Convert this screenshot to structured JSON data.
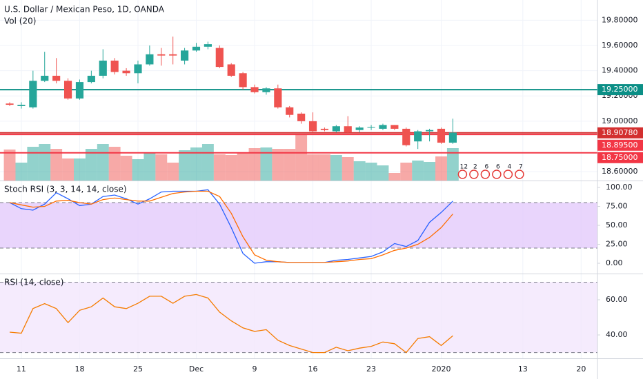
{
  "chart_data": [
    {
      "type": "candlestick",
      "title": "U.S. Dollar / Mexican Peso, 1D, OANDA",
      "subtitle": "Vol (20)",
      "x": [
        0,
        1,
        2,
        3,
        4,
        5,
        6,
        7,
        8,
        9,
        10,
        11,
        12,
        13,
        14,
        15,
        16,
        17,
        18,
        19,
        20,
        21,
        22,
        23,
        24,
        25,
        26,
        27,
        28,
        29,
        30,
        31,
        32,
        33,
        34,
        35,
        36,
        37,
        38
      ],
      "open": [
        19.14,
        19.12,
        19.11,
        19.32,
        19.36,
        19.32,
        19.18,
        19.31,
        19.36,
        19.48,
        19.4,
        19.38,
        19.45,
        19.53,
        19.53,
        19.48,
        19.56,
        19.59,
        19.58,
        19.45,
        19.38,
        19.27,
        19.23,
        19.26,
        19.11,
        19.06,
        19.0,
        18.94,
        18.92,
        18.96,
        18.93,
        18.95,
        18.94,
        18.97,
        18.94,
        18.84,
        18.92,
        18.94,
        18.83
      ],
      "high": [
        19.15,
        19.15,
        19.4,
        19.55,
        19.5,
        19.34,
        19.33,
        19.4,
        19.57,
        19.5,
        19.42,
        19.48,
        19.6,
        19.58,
        19.67,
        19.58,
        19.62,
        19.63,
        19.6,
        19.46,
        19.39,
        19.29,
        19.27,
        19.29,
        19.12,
        19.07,
        19.07,
        18.95,
        18.97,
        19.04,
        18.96,
        18.97,
        18.98,
        18.97,
        18.95,
        18.93,
        18.94,
        18.95,
        19.02
      ],
      "low": [
        19.12,
        19.1,
        19.1,
        19.31,
        19.3,
        19.17,
        19.17,
        19.3,
        19.34,
        19.37,
        19.36,
        19.3,
        19.44,
        19.44,
        19.45,
        19.45,
        19.55,
        19.57,
        19.42,
        19.35,
        19.25,
        19.22,
        19.21,
        19.1,
        19.03,
        18.98,
        18.91,
        18.92,
        18.91,
        18.9,
        18.91,
        18.93,
        18.93,
        18.93,
        18.8,
        18.78,
        18.84,
        18.82,
        18.82
      ],
      "close": [
        19.13,
        19.13,
        19.32,
        19.36,
        19.32,
        19.18,
        19.31,
        19.36,
        19.48,
        19.39,
        19.38,
        19.45,
        19.53,
        19.52,
        19.52,
        19.56,
        19.59,
        19.61,
        19.43,
        19.36,
        19.27,
        19.23,
        19.26,
        19.11,
        19.05,
        19.0,
        18.92,
        18.93,
        18.96,
        18.91,
        18.95,
        18.955,
        18.97,
        18.94,
        18.81,
        18.92,
        18.93,
        18.83,
        18.91
      ],
      "volume": [
        45,
        26,
        49,
        53,
        46,
        32,
        32,
        46,
        53,
        49,
        36,
        31,
        40,
        38,
        26,
        44,
        48,
        53,
        38,
        37,
        40,
        47,
        48,
        46,
        46,
        66,
        38,
        38,
        37,
        34,
        28,
        26,
        22,
        11,
        26,
        29,
        27,
        35,
        47
      ],
      "volume_ylim": [
        0,
        262
      ],
      "up_color": "#26a69a",
      "down_color": "#ef5350",
      "xlim": [
        -0.83,
        50.4
      ],
      "xticks": [
        {
          "value": 1,
          "label": "11"
        },
        {
          "value": 6,
          "label": "18"
        },
        {
          "value": 11,
          "label": "25"
        },
        {
          "value": 16,
          "label": "Dec"
        },
        {
          "value": 21,
          "label": "9"
        },
        {
          "value": 26,
          "label": "16"
        },
        {
          "value": 31,
          "label": "23"
        },
        {
          "value": 37,
          "label": "2020"
        },
        {
          "value": 44,
          "label": "13"
        },
        {
          "value": 49,
          "label": "20"
        }
      ],
      "ylim": [
        18.53,
        19.96
      ],
      "yticks": [
        {
          "value": 19.8,
          "label": "19.80000"
        },
        {
          "value": 19.6,
          "label": "19.60000"
        },
        {
          "value": 19.4,
          "label": "19.40000"
        },
        {
          "value": 19.2,
          "label": "19.20000"
        },
        {
          "value": 19.0,
          "label": "19.00000"
        },
        {
          "value": 18.6,
          "label": "18.60000"
        }
      ],
      "levels": [
        {
          "value": 19.25,
          "label": "19.25000",
          "color": "#0b8f86"
        },
        {
          "value": 18.9078,
          "label": "18.90780",
          "color": "#d32f2f"
        },
        {
          "value": 18.895,
          "label": "18.89500",
          "color": "#f23645"
        },
        {
          "value": 18.75,
          "label": "18.75000",
          "color": "#f23645"
        }
      ],
      "events": [
        "12",
        "2",
        "6",
        "6",
        "4",
        "7"
      ],
      "grid": true
    },
    {
      "type": "line",
      "title": "Stoch RSI (3, 3, 14, 14, close)",
      "series": [
        {
          "color": "#2962ff",
          "values": [
            80,
            72,
            70,
            78,
            93,
            85,
            76,
            78,
            88,
            90,
            85,
            78,
            85,
            94,
            95,
            95,
            95,
            97,
            78,
            47,
            13,
            0,
            2,
            2,
            1,
            1,
            1,
            1,
            4,
            5,
            7,
            9,
            15,
            26,
            22,
            30,
            54,
            67,
            82
          ]
        },
        {
          "color": "#ff6d00",
          "values": [
            80,
            77,
            74,
            75,
            82,
            83,
            80,
            78,
            84,
            86,
            84,
            82,
            82,
            87,
            92,
            94,
            95,
            95,
            88,
            66,
            35,
            11,
            4,
            2,
            1,
            1,
            1,
            1,
            2,
            3,
            5,
            6,
            11,
            17,
            20,
            25,
            34,
            47,
            65
          ]
        }
      ],
      "ylim": [
        -13.6,
        108.2
      ],
      "yticks": [
        {
          "value": 100,
          "label": "100.00"
        },
        {
          "value": 75,
          "label": "75.00"
        },
        {
          "value": 50,
          "label": "50.00"
        },
        {
          "value": 25,
          "label": "25.00"
        },
        {
          "value": 0,
          "label": "0.00"
        }
      ],
      "band": [
        20,
        80
      ],
      "band_color": "#e3cbfb"
    },
    {
      "type": "line",
      "title": "RSI (14, close)",
      "series": [
        {
          "color": "#f57c00",
          "values": [
            41.6,
            41,
            55,
            57.8,
            55,
            47,
            54,
            56,
            61,
            56,
            55,
            58,
            62,
            62,
            58,
            62,
            63,
            61,
            53,
            48,
            44,
            42,
            43,
            37,
            34,
            32,
            30,
            30,
            33,
            31,
            32.5,
            33.5,
            36,
            35,
            30,
            38,
            39,
            34,
            39.5
          ]
        }
      ],
      "ylim": [
        26.7,
        74.5
      ],
      "yticks": [
        {
          "value": 60,
          "label": "60.00"
        },
        {
          "value": 40,
          "label": "40.00"
        }
      ],
      "band": [
        30,
        70
      ],
      "band_color": "#f3e6fd"
    }
  ]
}
